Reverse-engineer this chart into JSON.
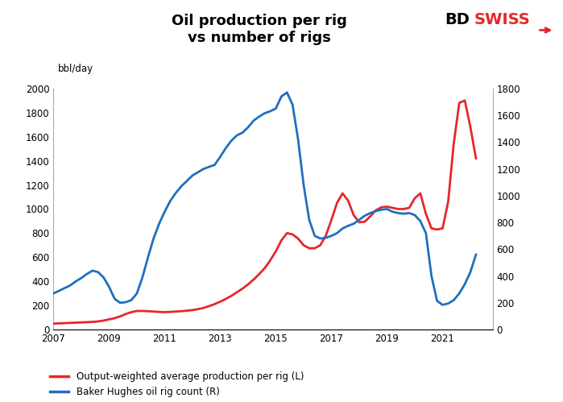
{
  "title": "Oil production per rig\nvs number of rigs",
  "ylabel_left": "bbl/day",
  "ylim_left": [
    0,
    2000
  ],
  "ylim_right": [
    0,
    1800
  ],
  "yticks_left": [
    0,
    200,
    400,
    600,
    800,
    1000,
    1200,
    1400,
    1600,
    1800,
    2000
  ],
  "yticks_right": [
    0,
    200,
    400,
    600,
    800,
    1000,
    1200,
    1400,
    1600,
    1800
  ],
  "xticks": [
    2007,
    2009,
    2011,
    2013,
    2015,
    2017,
    2019,
    2021
  ],
  "xlim": [
    2007,
    2022.8
  ],
  "legend1": "Output-weighted average production per rig (L)",
  "legend2": "Baker Hughes oil rig count (R)",
  "color_red": "#e8262a",
  "color_blue": "#1f6fbf",
  "background": "#ffffff",
  "red_series": {
    "x": [
      2007.0,
      2007.2,
      2007.4,
      2007.6,
      2007.8,
      2008.0,
      2008.2,
      2008.4,
      2008.6,
      2008.8,
      2009.0,
      2009.2,
      2009.4,
      2009.6,
      2009.8,
      2010.0,
      2010.2,
      2010.4,
      2010.6,
      2010.8,
      2011.0,
      2011.2,
      2011.4,
      2011.6,
      2011.8,
      2012.0,
      2012.2,
      2012.4,
      2012.6,
      2012.8,
      2013.0,
      2013.2,
      2013.4,
      2013.6,
      2013.8,
      2014.0,
      2014.2,
      2014.4,
      2014.6,
      2014.8,
      2015.0,
      2015.2,
      2015.4,
      2015.6,
      2015.8,
      2016.0,
      2016.2,
      2016.4,
      2016.6,
      2016.8,
      2017.0,
      2017.2,
      2017.4,
      2017.6,
      2017.8,
      2018.0,
      2018.2,
      2018.4,
      2018.6,
      2018.8,
      2019.0,
      2019.2,
      2019.4,
      2019.6,
      2019.8,
      2020.0,
      2020.2,
      2020.4,
      2020.6,
      2020.8,
      2021.0,
      2021.2,
      2021.4,
      2021.6,
      2021.8,
      2022.0,
      2022.2
    ],
    "y": [
      50,
      52,
      54,
      56,
      58,
      60,
      62,
      64,
      68,
      75,
      85,
      95,
      110,
      130,
      145,
      155,
      155,
      153,
      150,
      147,
      145,
      147,
      150,
      153,
      157,
      162,
      170,
      180,
      195,
      212,
      232,
      255,
      280,
      310,
      340,
      375,
      415,
      460,
      510,
      575,
      650,
      740,
      800,
      790,
      755,
      700,
      675,
      675,
      700,
      780,
      910,
      1050,
      1130,
      1070,
      950,
      890,
      895,
      940,
      990,
      1015,
      1020,
      1010,
      1000,
      1000,
      1010,
      1090,
      1130,
      960,
      840,
      830,
      840,
      1060,
      1540,
      1880,
      1900,
      1680,
      1420
    ]
  },
  "blue_series": {
    "x": [
      2007.0,
      2007.2,
      2007.4,
      2007.6,
      2007.8,
      2008.0,
      2008.2,
      2008.4,
      2008.6,
      2008.8,
      2009.0,
      2009.2,
      2009.4,
      2009.6,
      2009.8,
      2010.0,
      2010.2,
      2010.4,
      2010.6,
      2010.8,
      2011.0,
      2011.2,
      2011.4,
      2011.6,
      2011.8,
      2012.0,
      2012.2,
      2012.4,
      2012.6,
      2012.8,
      2013.0,
      2013.2,
      2013.4,
      2013.6,
      2013.8,
      2014.0,
      2014.2,
      2014.4,
      2014.6,
      2014.8,
      2015.0,
      2015.2,
      2015.4,
      2015.6,
      2015.8,
      2016.0,
      2016.2,
      2016.4,
      2016.6,
      2016.8,
      2017.0,
      2017.2,
      2017.4,
      2017.6,
      2017.8,
      2018.0,
      2018.2,
      2018.4,
      2018.6,
      2018.8,
      2019.0,
      2019.2,
      2019.4,
      2019.6,
      2019.8,
      2020.0,
      2020.2,
      2020.4,
      2020.6,
      2020.8,
      2021.0,
      2021.2,
      2021.4,
      2021.6,
      2021.8,
      2022.0,
      2022.2
    ],
    "y": [
      270,
      290,
      310,
      330,
      360,
      385,
      415,
      440,
      430,
      390,
      320,
      230,
      200,
      205,
      220,
      270,
      390,
      540,
      680,
      790,
      880,
      960,
      1020,
      1070,
      1110,
      1150,
      1175,
      1200,
      1215,
      1230,
      1290,
      1355,
      1410,
      1450,
      1470,
      1510,
      1560,
      1590,
      1615,
      1630,
      1650,
      1740,
      1770,
      1680,
      1420,
      1080,
      820,
      700,
      680,
      685,
      700,
      720,
      755,
      775,
      790,
      820,
      850,
      870,
      885,
      895,
      900,
      880,
      870,
      865,
      870,
      855,
      810,
      720,
      400,
      215,
      185,
      195,
      220,
      270,
      340,
      430,
      560
    ]
  }
}
